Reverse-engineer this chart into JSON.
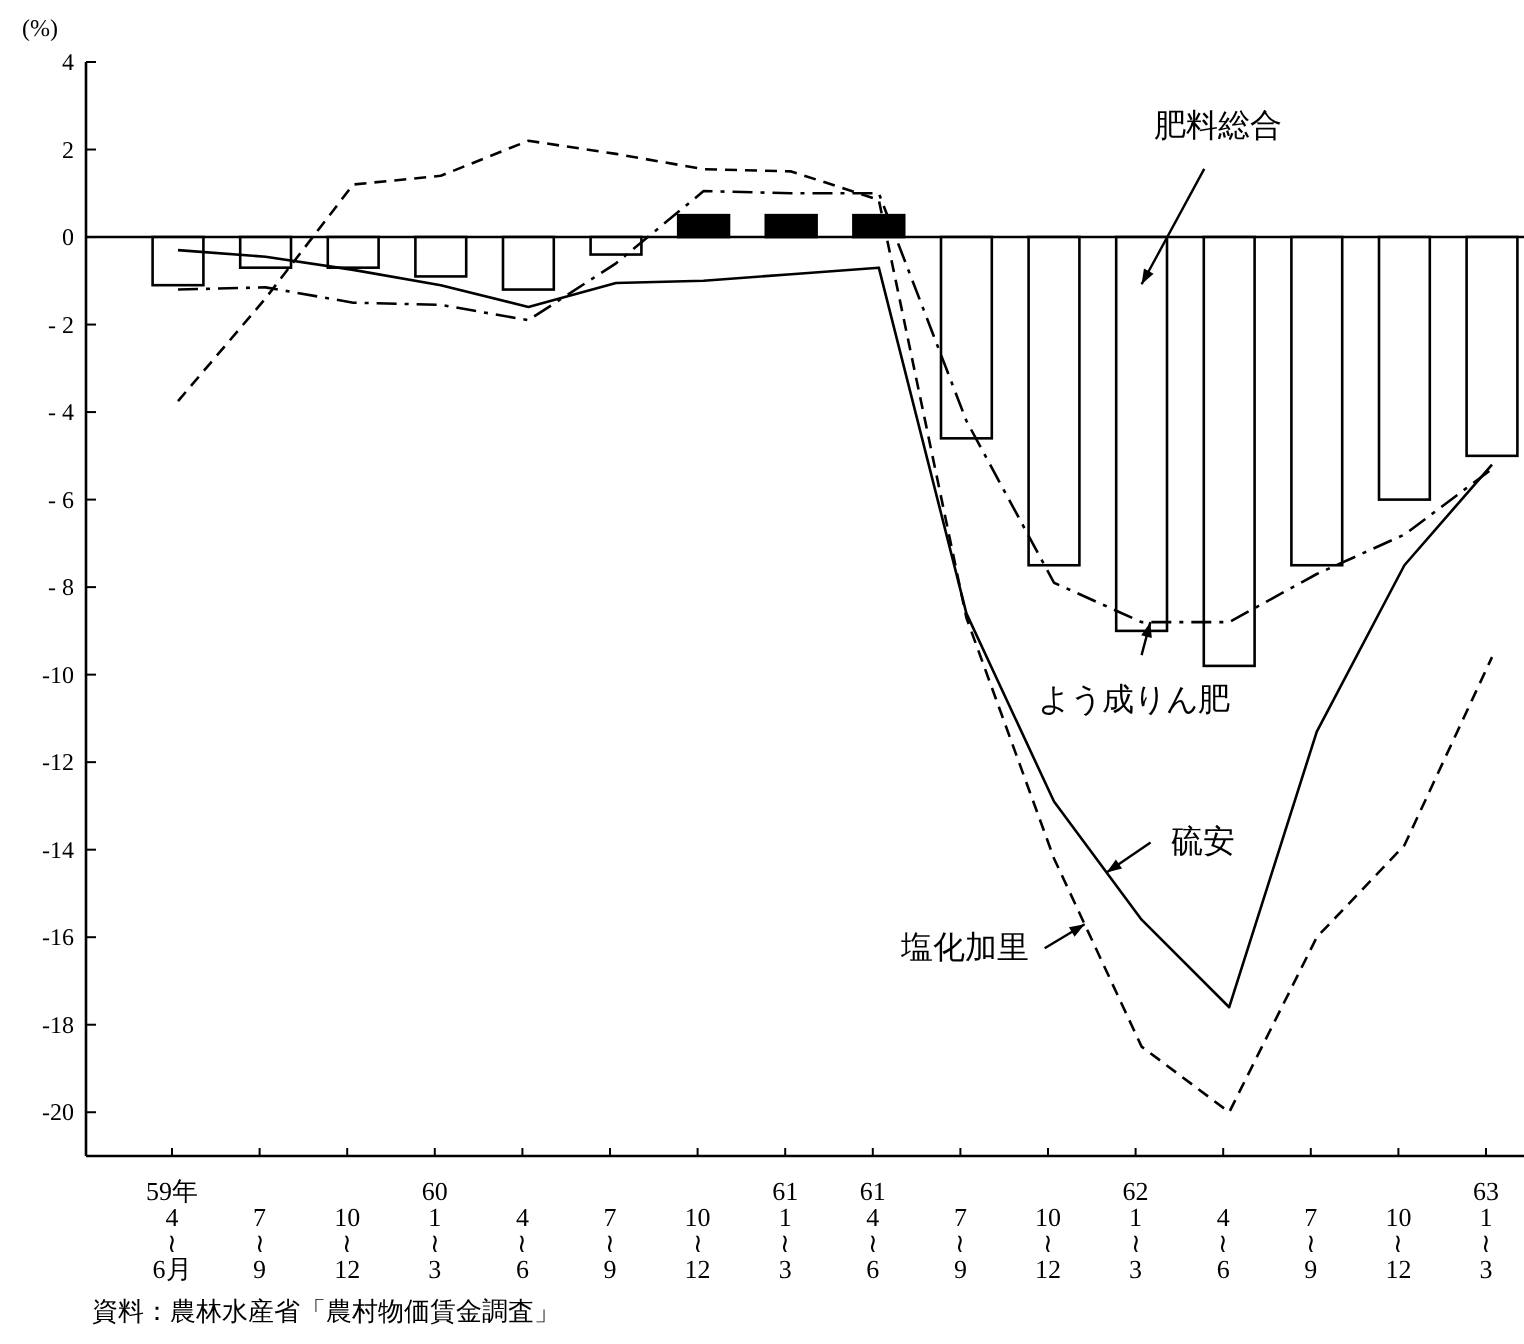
{
  "chart_data": {
    "type": "bar",
    "ylabel": "(%)",
    "categories": [
      "59年\n4\n≀\n6月",
      "7\n≀\n9",
      "10\n≀\n12",
      "60\n1\n≀\n3",
      "4\n≀\n6",
      "7\n≀\n9",
      "10\n≀\n12",
      "61\n1\n≀\n3",
      "61\n4\n≀\n6",
      "7\n≀\n9",
      "10\n≀\n12",
      "62\n1\n≀\n3",
      "4\n≀\n6",
      "7\n≀\n9",
      "10\n≀\n12",
      "63\n1\n≀\n3"
    ],
    "series": [
      {
        "name": "肥料総合",
        "colors": [
          "#ffffff",
          "#ffffff",
          "#ffffff",
          "#ffffff",
          "#ffffff",
          "#ffffff",
          "#000000",
          "#000000",
          "#000000",
          "#ffffff",
          "#ffffff",
          "#ffffff",
          "#ffffff",
          "#ffffff",
          "#ffffff",
          "#ffffff"
        ],
        "values": [
          -1.1,
          -0.7,
          -0.7,
          -0.9,
          -1.2,
          -0.4,
          0.5,
          0.5,
          0.5,
          -4.6,
          -7.5,
          -9.0,
          -9.8,
          -7.5,
          -6.0,
          -5.0
        ]
      },
      {
        "name": "よう成りん肥",
        "type": "line",
        "color": "#000000",
        "line_style": "dashdot",
        "values": [
          -1.2,
          -1.15,
          -1.5,
          -1.55,
          -1.9,
          -0.6,
          1.05,
          1.0,
          1.0,
          -4.2,
          -7.9,
          -8.8,
          -8.8,
          -7.7,
          -6.8,
          -5.3
        ]
      },
      {
        "name": "硫安",
        "type": "line",
        "color": "#000000",
        "line_style": "solid",
        "values": [
          -0.3,
          -0.45,
          -0.75,
          -1.1,
          -1.6,
          -1.05,
          -1.0,
          -0.85,
          -0.7,
          -8.6,
          -12.9,
          -15.6,
          -17.6,
          -11.3,
          -7.5,
          -5.2
        ]
      },
      {
        "name": "塩化加里",
        "type": "line",
        "color": "#000000",
        "line_style": "dashed",
        "values": [
          -3.75,
          -1.4,
          1.2,
          1.4,
          2.2,
          1.9,
          1.55,
          1.5,
          0.85,
          -8.7,
          -14.2,
          -18.5,
          -20.0,
          -16.0,
          -13.9,
          -9.6
        ]
      }
    ],
    "ylim": [
      -21,
      4
    ],
    "yticks": [
      4,
      2,
      0,
      {
        "value": -2,
        "label": "- 2"
      },
      {
        "value": -4,
        "label": "- 4"
      },
      {
        "value": -6,
        "label": "- 6"
      },
      {
        "value": -8,
        "label": "- 8"
      },
      -10,
      -12,
      -14,
      -16,
      -18,
      -20
    ],
    "ref_lines": [
      {
        "axis": "y",
        "value": 0,
        "color": "#000000"
      }
    ],
    "annotations": [
      "資料：農林水産省「農村物価賃金調査」"
    ],
    "grid": false
  }
}
